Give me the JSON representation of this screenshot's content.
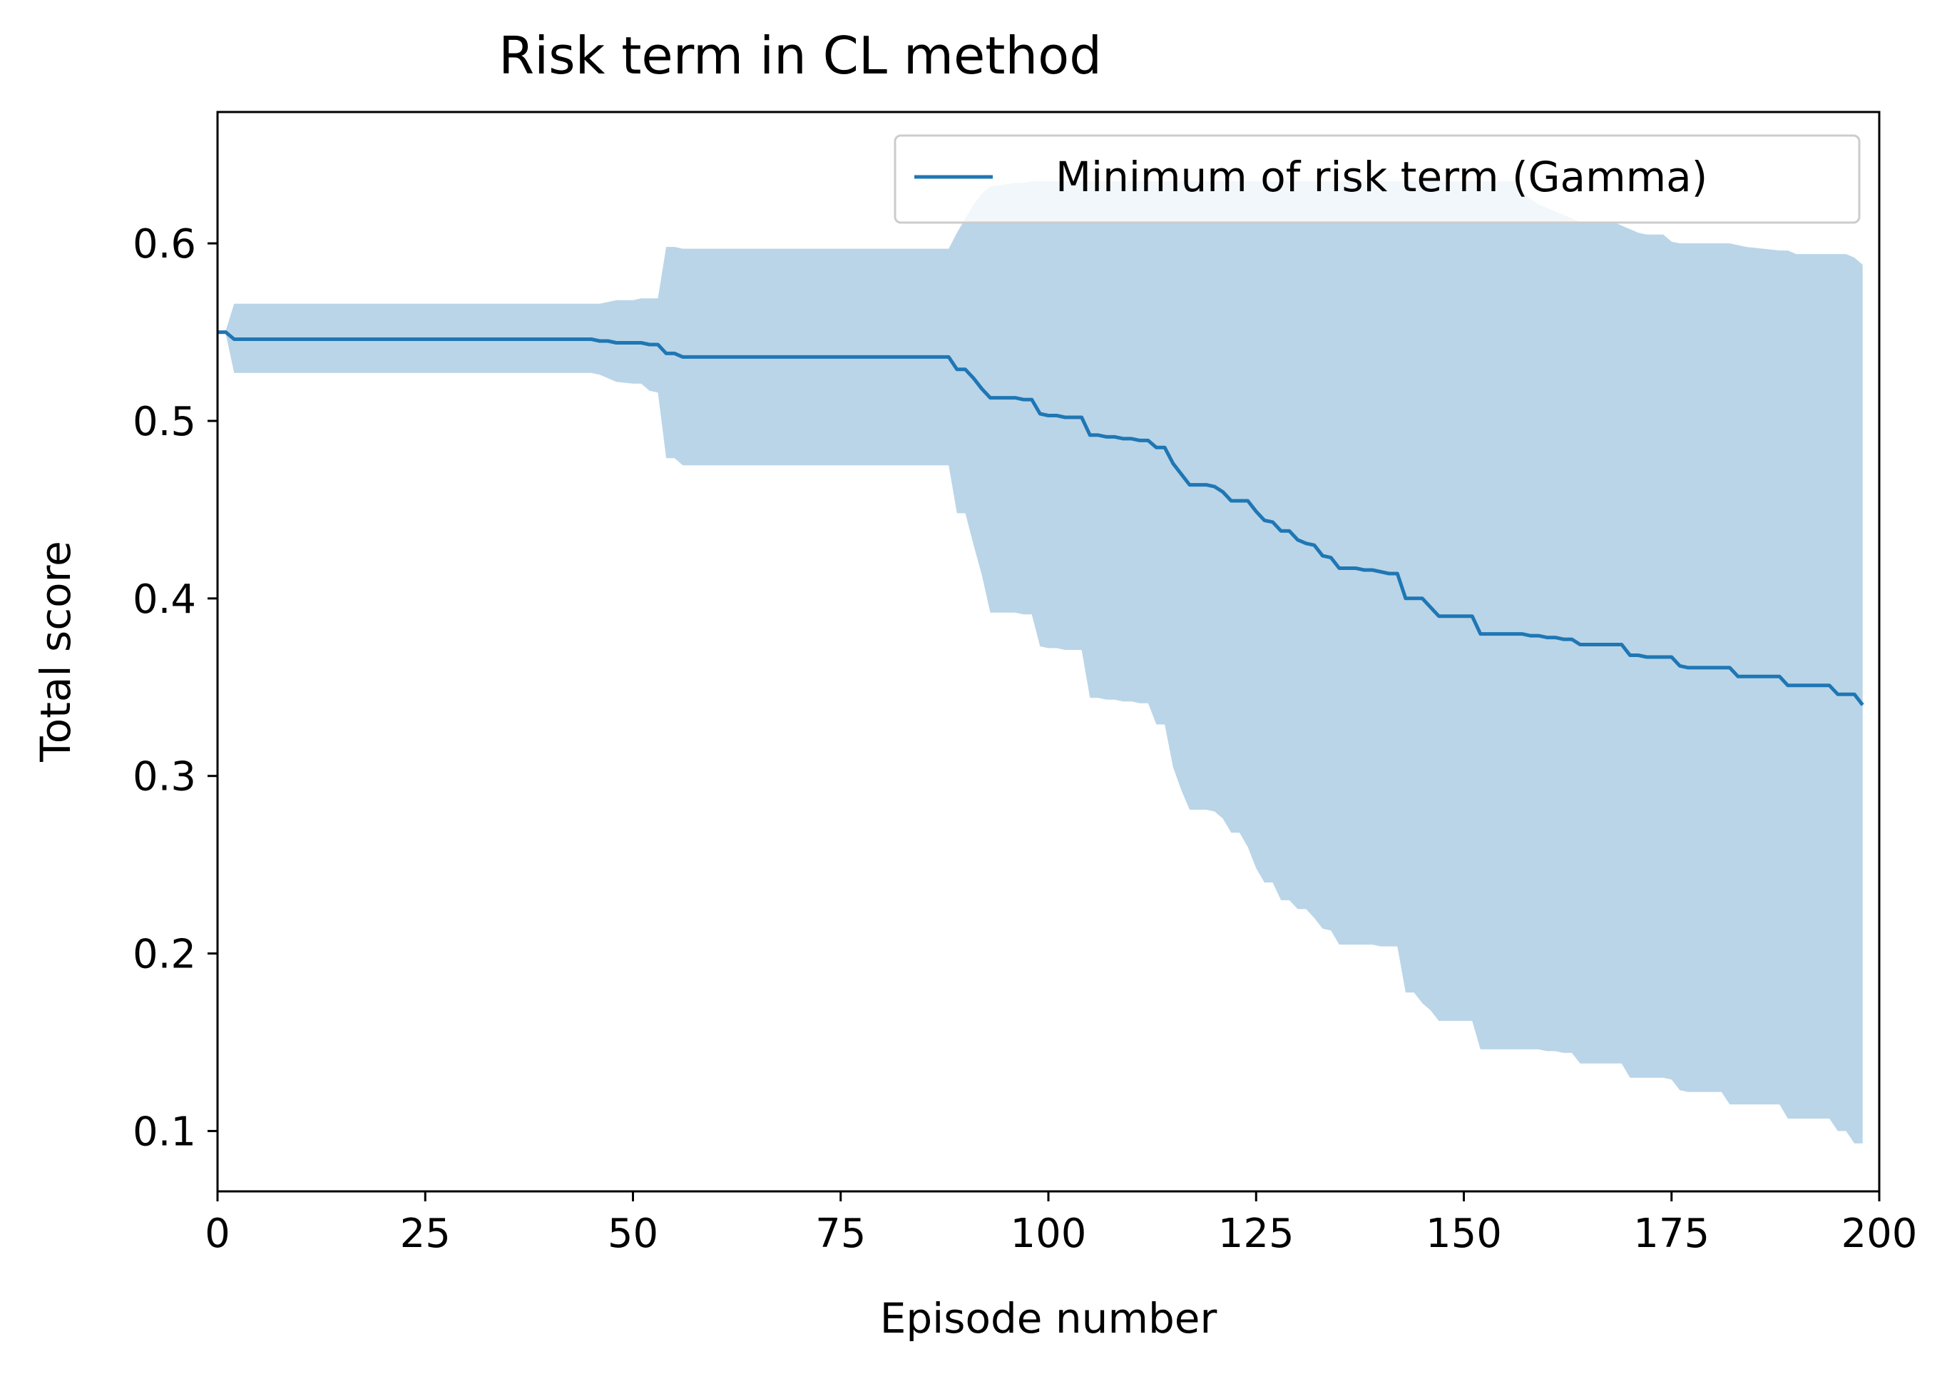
{
  "chart_data": {
    "type": "line",
    "title": "Risk term in CL method",
    "xlabel": "Episode number",
    "ylabel": "Total score",
    "xlim": [
      0,
      200
    ],
    "ylim": [
      0.066,
      0.674
    ],
    "xticks": [
      0,
      25,
      50,
      75,
      100,
      125,
      150,
      175,
      200
    ],
    "yticks": [
      0.1,
      0.2,
      0.3,
      0.4,
      0.5,
      0.6
    ],
    "ytick_labels": [
      "0.1",
      "0.2",
      "0.3",
      "0.4",
      "0.5",
      "0.6"
    ],
    "grid": false,
    "legend_position": "upper right",
    "series": [
      {
        "name": "Minimum of risk term (Gamma)",
        "color": "#1f77b4",
        "band_color": "#bad5e8",
        "x": [
          0,
          1,
          2,
          45,
          46,
          47,
          48,
          50,
          51,
          52,
          53,
          54,
          55,
          56,
          88,
          89,
          90,
          91,
          92,
          93,
          96,
          97,
          98,
          99,
          100,
          101,
          102,
          104,
          105,
          106,
          107,
          108,
          109,
          110,
          111,
          112,
          113,
          114,
          115,
          116,
          117,
          118,
          119,
          120,
          121,
          122,
          123,
          124,
          125,
          126,
          127,
          128,
          129,
          130,
          131,
          132,
          133,
          134,
          135,
          136,
          137,
          138,
          139,
          140,
          141,
          142,
          143,
          144,
          145,
          146,
          147,
          148,
          149,
          150,
          151,
          152,
          155,
          156,
          157,
          158,
          159,
          160,
          161,
          162,
          163,
          164,
          168,
          169,
          170,
          171,
          172,
          173,
          174,
          175,
          176,
          177,
          181,
          182,
          183,
          184,
          188,
          189,
          190,
          194,
          195,
          196,
          197,
          198
        ],
        "y": [
          0.55,
          0.55,
          0.546,
          0.546,
          0.545,
          0.545,
          0.544,
          0.544,
          0.544,
          0.543,
          0.543,
          0.538,
          0.538,
          0.536,
          0.536,
          0.529,
          0.529,
          0.524,
          0.518,
          0.513,
          0.513,
          0.512,
          0.512,
          0.504,
          0.503,
          0.503,
          0.502,
          0.502,
          0.492,
          0.492,
          0.491,
          0.491,
          0.49,
          0.49,
          0.489,
          0.489,
          0.485,
          0.485,
          0.476,
          0.47,
          0.464,
          0.464,
          0.464,
          0.463,
          0.46,
          0.455,
          0.455,
          0.455,
          0.449,
          0.444,
          0.443,
          0.438,
          0.438,
          0.433,
          0.431,
          0.43,
          0.424,
          0.423,
          0.417,
          0.417,
          0.417,
          0.416,
          0.416,
          0.415,
          0.414,
          0.414,
          0.4,
          0.4,
          0.4,
          0.395,
          0.39,
          0.39,
          0.39,
          0.39,
          0.39,
          0.38,
          0.38,
          0.38,
          0.38,
          0.379,
          0.379,
          0.378,
          0.378,
          0.377,
          0.377,
          0.374,
          0.374,
          0.374,
          0.368,
          0.368,
          0.367,
          0.367,
          0.367,
          0.367,
          0.362,
          0.361,
          0.361,
          0.361,
          0.356,
          0.356,
          0.356,
          0.351,
          0.351,
          0.351,
          0.346,
          0.346,
          0.346,
          0.34
        ],
        "upper": [
          0.551,
          0.551,
          0.566,
          0.566,
          0.566,
          0.567,
          0.568,
          0.568,
          0.569,
          0.569,
          0.569,
          0.598,
          0.598,
          0.597,
          0.597,
          0.606,
          0.614,
          0.622,
          0.628,
          0.632,
          0.634,
          0.634,
          0.635,
          0.635,
          0.635,
          0.635,
          0.635,
          0.635,
          0.635,
          0.635,
          0.635,
          0.635,
          0.635,
          0.635,
          0.635,
          0.635,
          0.635,
          0.635,
          0.635,
          0.635,
          0.635,
          0.635,
          0.635,
          0.635,
          0.635,
          0.635,
          0.635,
          0.635,
          0.635,
          0.635,
          0.635,
          0.635,
          0.635,
          0.635,
          0.635,
          0.635,
          0.635,
          0.635,
          0.635,
          0.635,
          0.635,
          0.635,
          0.635,
          0.635,
          0.635,
          0.635,
          0.635,
          0.635,
          0.635,
          0.635,
          0.635,
          0.635,
          0.635,
          0.635,
          0.635,
          0.635,
          0.635,
          0.635,
          0.63,
          0.625,
          0.622,
          0.62,
          0.618,
          0.616,
          0.614,
          0.612,
          0.612,
          0.61,
          0.608,
          0.606,
          0.605,
          0.605,
          0.605,
          0.601,
          0.6,
          0.6,
          0.6,
          0.6,
          0.599,
          0.598,
          0.596,
          0.596,
          0.594,
          0.594,
          0.594,
          0.594,
          0.592,
          0.588
        ],
        "lower": [
          0.549,
          0.549,
          0.527,
          0.527,
          0.526,
          0.524,
          0.522,
          0.521,
          0.521,
          0.517,
          0.516,
          0.479,
          0.479,
          0.475,
          0.475,
          0.448,
          0.448,
          0.43,
          0.413,
          0.392,
          0.392,
          0.391,
          0.391,
          0.373,
          0.372,
          0.372,
          0.371,
          0.371,
          0.344,
          0.344,
          0.343,
          0.343,
          0.342,
          0.342,
          0.341,
          0.341,
          0.329,
          0.329,
          0.305,
          0.292,
          0.281,
          0.281,
          0.281,
          0.28,
          0.276,
          0.268,
          0.268,
          0.26,
          0.248,
          0.24,
          0.24,
          0.23,
          0.23,
          0.225,
          0.225,
          0.22,
          0.214,
          0.213,
          0.205,
          0.205,
          0.205,
          0.205,
          0.205,
          0.204,
          0.204,
          0.204,
          0.178,
          0.178,
          0.172,
          0.168,
          0.162,
          0.162,
          0.162,
          0.162,
          0.162,
          0.146,
          0.146,
          0.146,
          0.146,
          0.146,
          0.146,
          0.145,
          0.145,
          0.144,
          0.144,
          0.138,
          0.138,
          0.138,
          0.13,
          0.13,
          0.13,
          0.13,
          0.13,
          0.129,
          0.123,
          0.122,
          0.122,
          0.115,
          0.115,
          0.115,
          0.115,
          0.107,
          0.107,
          0.107,
          0.1,
          0.1,
          0.093,
          0.093
        ]
      }
    ]
  }
}
